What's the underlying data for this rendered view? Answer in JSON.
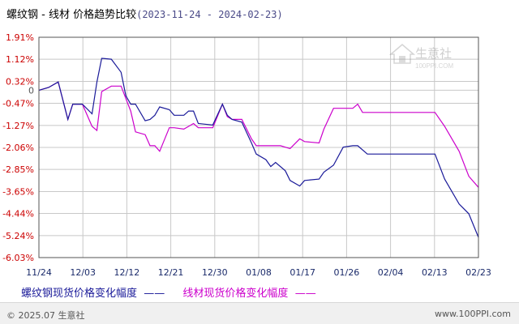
{
  "title": "螺纹钢 - 线材 价格趋势比较",
  "date_range": "(2023-11-24 - 2024-02-23)",
  "watermark": {
    "name": "生意社",
    "url": "100PPI.COM"
  },
  "legend": {
    "series1": "螺纹钢现货价格变化幅度",
    "series2": "线材现货价格变化幅度",
    "dash": "——"
  },
  "footer": {
    "left": "© 2025.07 生意社",
    "right": "www.100PPI.com"
  },
  "colors": {
    "series1": "#1a1a99",
    "series2": "#cc00cc",
    "grid": "#c8c8c8",
    "axis_text": "#cc0000"
  },
  "chart_data": {
    "type": "line",
    "title": "螺纹钢 - 线材 价格趋势比较",
    "xlabel": "",
    "ylabel": "",
    "grid": true,
    "y_unit": "%",
    "yticks": [
      "1.91%",
      "1.12%",
      "0.32%",
      "0",
      "-0.47%",
      "-1.27%",
      "-2.06%",
      "-2.85%",
      "-3.65%",
      "-4.44%",
      "-5.24%",
      "-6.03%"
    ],
    "ytick_values": [
      1.91,
      1.12,
      0.32,
      0,
      -0.47,
      -1.27,
      -2.06,
      -2.85,
      -3.65,
      -4.44,
      -5.24,
      -6.03
    ],
    "ylim": [
      -6.03,
      1.91
    ],
    "x_range": [
      "2023-11-24",
      "2024-02-23"
    ],
    "xticks": [
      "11/24",
      "12/03",
      "12/12",
      "12/21",
      "12/30",
      "01/08",
      "01/17",
      "01/26",
      "02/04",
      "02/13",
      "02/23"
    ],
    "series": [
      {
        "name": "螺纹钢现货价格变化幅度",
        "x": [
          "2023-11-24",
          "2023-11-26",
          "2023-11-28",
          "2023-11-30",
          "2023-12-01",
          "2023-12-03",
          "2023-12-05",
          "2023-12-06",
          "2023-12-07",
          "2023-12-09",
          "2023-12-11",
          "2023-12-12",
          "2023-12-13",
          "2023-12-14",
          "2023-12-16",
          "2023-12-17",
          "2023-12-18",
          "2023-12-19",
          "2023-12-21",
          "2023-12-22",
          "2023-12-24",
          "2023-12-25",
          "2023-12-26",
          "2023-12-27",
          "2023-12-30",
          "2024-01-01",
          "2024-01-02",
          "2024-01-03",
          "2024-01-05",
          "2024-01-07",
          "2024-01-08",
          "2024-01-10",
          "2024-01-11",
          "2024-01-12",
          "2024-01-14",
          "2024-01-15",
          "2024-01-17",
          "2024-01-18",
          "2024-01-21",
          "2024-01-22",
          "2024-01-24",
          "2024-01-26",
          "2024-01-28",
          "2024-01-29",
          "2024-01-31",
          "2024-02-14",
          "2024-02-16",
          "2024-02-19",
          "2024-02-21",
          "2024-02-23"
        ],
        "values": [
          0,
          0.1,
          0.3,
          -1.05,
          -0.5,
          -0.5,
          -0.85,
          0.3,
          1.15,
          1.12,
          0.65,
          -0.2,
          -0.5,
          -0.5,
          -1.1,
          -1.05,
          -0.9,
          -0.6,
          -0.7,
          -0.9,
          -0.9,
          -0.75,
          -0.75,
          -1.2,
          -1.25,
          -0.5,
          -0.9,
          -1.05,
          -1.15,
          -1.9,
          -2.3,
          -2.5,
          -2.75,
          -2.6,
          -2.9,
          -3.25,
          -3.45,
          -3.25,
          -3.2,
          -2.95,
          -2.7,
          -2.05,
          -2.0,
          -2.0,
          -2.3,
          -2.3,
          -3.2,
          -4.1,
          -4.45,
          -5.3
        ]
      },
      {
        "name": "线材现货价格变化幅度",
        "x": [
          "2023-11-24",
          "2023-11-26",
          "2023-11-28",
          "2023-11-30",
          "2023-12-01",
          "2023-12-03",
          "2023-12-05",
          "2023-12-06",
          "2023-12-07",
          "2023-12-09",
          "2023-12-11",
          "2023-12-12",
          "2023-12-13",
          "2023-12-14",
          "2023-12-16",
          "2023-12-17",
          "2023-12-18",
          "2023-12-19",
          "2023-12-21",
          "2023-12-22",
          "2023-12-24",
          "2023-12-25",
          "2023-12-26",
          "2023-12-27",
          "2023-12-30",
          "2024-01-01",
          "2024-01-02",
          "2024-01-03",
          "2024-01-05",
          "2024-01-07",
          "2024-01-08",
          "2024-01-09",
          "2024-01-13",
          "2024-01-15",
          "2024-01-17",
          "2024-01-18",
          "2024-01-21",
          "2024-01-22",
          "2024-01-24",
          "2024-01-28",
          "2024-01-29",
          "2024-01-30",
          "2024-02-14",
          "2024-02-16",
          "2024-02-19",
          "2024-02-21",
          "2024-02-23"
        ],
        "values": [
          0,
          0.1,
          0.3,
          -1.05,
          -0.5,
          -0.5,
          -1.3,
          -1.45,
          -0.05,
          0.15,
          0.15,
          -0.3,
          -0.75,
          -1.5,
          -1.6,
          -2.0,
          -2.0,
          -2.2,
          -1.35,
          -1.35,
          -1.4,
          -1.3,
          -1.2,
          -1.35,
          -1.35,
          -0.5,
          -0.95,
          -1.05,
          -1.05,
          -1.75,
          -2.0,
          -2.0,
          -2.0,
          -2.1,
          -1.75,
          -1.85,
          -1.9,
          -1.4,
          -0.65,
          -0.65,
          -0.5,
          -0.8,
          -0.8,
          -1.3,
          -2.2,
          -3.1,
          -3.5
        ]
      }
    ]
  }
}
